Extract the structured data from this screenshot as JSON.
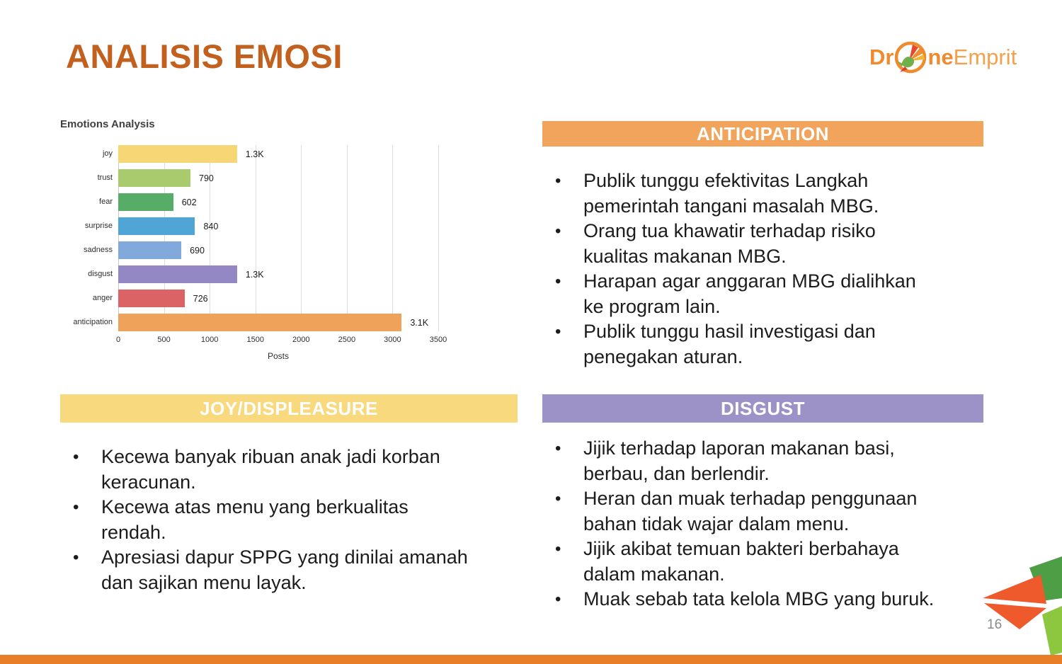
{
  "slide": {
    "title": "ANALISIS EMOSI",
    "page_number": "16",
    "accent_color": "#E87E28",
    "title_color": "#C2601E"
  },
  "logo": {
    "part1": "Dr",
    "part2": "ne",
    "part3": "Emprit"
  },
  "chart_data": {
    "type": "bar",
    "orientation": "horizontal",
    "title": "Emotions Analysis",
    "categories": [
      "joy",
      "trust",
      "fear",
      "surprise",
      "sadness",
      "disgust",
      "anger",
      "anticipation"
    ],
    "values": [
      1300,
      790,
      602,
      840,
      690,
      1300,
      726,
      3100
    ],
    "value_labels": [
      "1.3K",
      "790",
      "602",
      "840",
      "690",
      "1.3K",
      "726",
      "3.1K"
    ],
    "bar_colors": [
      "#F7D675",
      "#A9CB6E",
      "#57AC68",
      "#4EA5D6",
      "#82A9DB",
      "#9388C3",
      "#DC6365",
      "#EFA259"
    ],
    "xlabel": "Posts",
    "ylabel": "",
    "xlim": [
      0,
      3500
    ],
    "xticks": [
      0,
      500,
      1000,
      1500,
      2000,
      2500,
      3000,
      3500
    ],
    "grid": true,
    "legend": false
  },
  "sections": {
    "anticipation": {
      "header": "ANTICIPATION",
      "header_color": "#F2A45C",
      "bullets": [
        "Publik tunggu efektivitas Langkah\npemerintah tangani masalah MBG.",
        "Orang tua khawatir terhadap risiko\nkualitas makanan MBG.",
        "Harapan agar anggaran MBG dialihkan\nke program lain.",
        "Publik tunggu hasil investigasi dan\npenegakan aturan."
      ]
    },
    "joy": {
      "header": "JOY/DISPLEASURE",
      "header_color": "#F8D97E",
      "bullets": [
        "Kecewa banyak ribuan anak jadi korban\nkeracunan.",
        "Kecewa atas menu yang berkualitas\nrendah.",
        "Apresiasi dapur SPPG yang dinilai amanah\ndan sajikan menu layak."
      ]
    },
    "disgust": {
      "header": "DISGUST",
      "header_color": "#9C92C8",
      "bullets": [
        "Jijik terhadap laporan makanan basi,\nberbau, dan berlendir.",
        "Heran dan muak terhadap penggunaan\nbahan tidak wajar dalam menu.",
        "Jijik akibat temuan bakteri berbahaya\ndalam makanan.",
        "Muak sebab tata kelola MBG yang buruk."
      ]
    }
  },
  "decoration_colors": {
    "dark_green": "#4E9E45",
    "red_orange": "#EE5A2C",
    "light_green": "#8DC63F"
  }
}
